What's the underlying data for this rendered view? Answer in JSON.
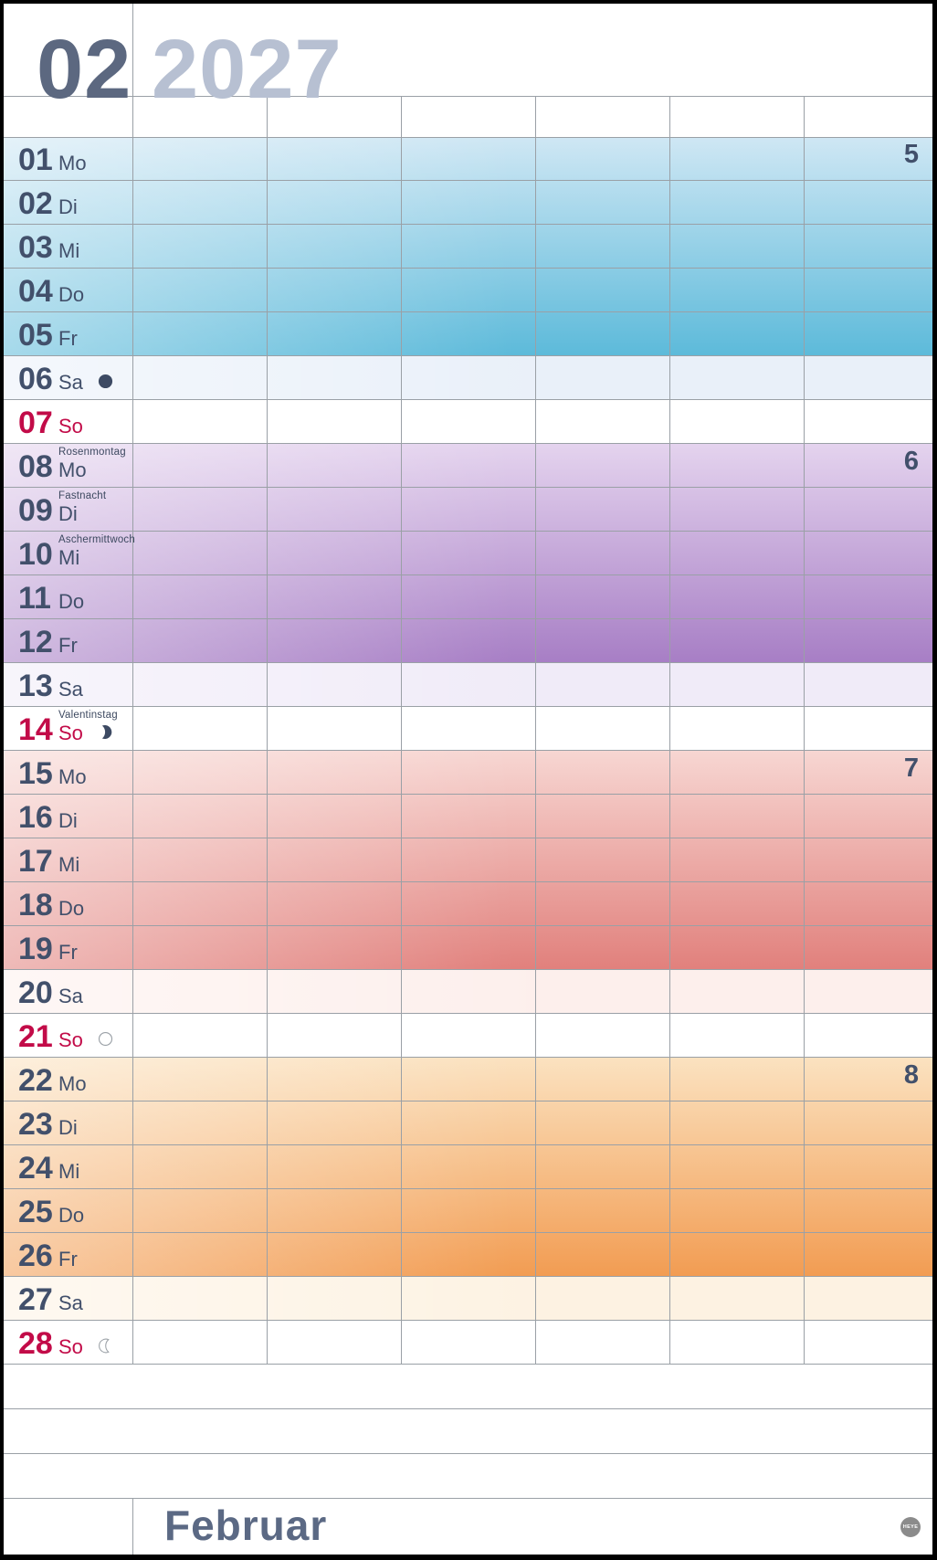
{
  "header": {
    "month_number": "02",
    "year": "2027"
  },
  "footer": {
    "month_name": "Februar",
    "logo_text": "HEYE"
  },
  "days": [
    {
      "num": "01",
      "weekday": "Mo",
      "type": "wk",
      "band": "blue",
      "week_number": "5"
    },
    {
      "num": "02",
      "weekday": "Di",
      "type": "wk",
      "band": "blue"
    },
    {
      "num": "03",
      "weekday": "Mi",
      "type": "wk",
      "band": "blue"
    },
    {
      "num": "04",
      "weekday": "Do",
      "type": "wk",
      "band": "blue"
    },
    {
      "num": "05",
      "weekday": "Fr",
      "type": "wk",
      "band": "blue"
    },
    {
      "num": "06",
      "weekday": "Sa",
      "type": "sa",
      "band": "blue",
      "moon": "new-moon"
    },
    {
      "num": "07",
      "weekday": "So",
      "type": "su"
    },
    {
      "num": "08",
      "weekday": "Mo",
      "type": "wk",
      "band": "purple",
      "week_number": "6",
      "holiday": "Rosenmontag"
    },
    {
      "num": "09",
      "weekday": "Di",
      "type": "wk",
      "band": "purple",
      "holiday": "Fastnacht"
    },
    {
      "num": "10",
      "weekday": "Mi",
      "type": "wk",
      "band": "purple",
      "holiday": "Aschermittwoch"
    },
    {
      "num": "11",
      "weekday": "Do",
      "type": "wk",
      "band": "purple"
    },
    {
      "num": "12",
      "weekday": "Fr",
      "type": "wk",
      "band": "purple"
    },
    {
      "num": "13",
      "weekday": "Sa",
      "type": "sa",
      "band": "purple"
    },
    {
      "num": "14",
      "weekday": "So",
      "type": "su",
      "holiday": "Valentinstag",
      "moon": "first-quarter"
    },
    {
      "num": "15",
      "weekday": "Mo",
      "type": "wk",
      "band": "red",
      "week_number": "7"
    },
    {
      "num": "16",
      "weekday": "Di",
      "type": "wk",
      "band": "red"
    },
    {
      "num": "17",
      "weekday": "Mi",
      "type": "wk",
      "band": "red"
    },
    {
      "num": "18",
      "weekday": "Do",
      "type": "wk",
      "band": "red"
    },
    {
      "num": "19",
      "weekday": "Fr",
      "type": "wk",
      "band": "red"
    },
    {
      "num": "20",
      "weekday": "Sa",
      "type": "sa",
      "band": "red"
    },
    {
      "num": "21",
      "weekday": "So",
      "type": "su",
      "moon": "full-moon"
    },
    {
      "num": "22",
      "weekday": "Mo",
      "type": "wk",
      "band": "orange",
      "week_number": "8"
    },
    {
      "num": "23",
      "weekday": "Di",
      "type": "wk",
      "band": "orange"
    },
    {
      "num": "24",
      "weekday": "Mi",
      "type": "wk",
      "band": "orange"
    },
    {
      "num": "25",
      "weekday": "Do",
      "type": "wk",
      "band": "orange"
    },
    {
      "num": "26",
      "weekday": "Fr",
      "type": "wk",
      "band": "orange"
    },
    {
      "num": "27",
      "weekday": "Sa",
      "type": "sa",
      "band": "orange"
    },
    {
      "num": "28",
      "weekday": "So",
      "type": "su",
      "moon": "last-quarter"
    }
  ],
  "colors": {
    "text_dark": "#42506b",
    "sunday_red": "#c20b48",
    "holiday_text": "#3d4960",
    "month_dark": "#5c6880",
    "year_gray": "#b7c0d2",
    "grid_line": "#9aa0a6",
    "footer_text": "#5b6984",
    "logo_bg": "#8b8b8b",
    "moon_dark": "#3d4a63",
    "moon_outline": "#9aa0a6",
    "bands": {
      "blue": {
        "light": "#cfe7f4",
        "dark": "#5cbada",
        "saturday": "#e9f0f9"
      },
      "purple": {
        "light": "#e4d3ee",
        "dark": "#a77ec5",
        "saturday": "#f0ebf8"
      },
      "red": {
        "light": "#f7d6d2",
        "dark": "#e1807c",
        "saturday": "#fdefec"
      },
      "orange": {
        "light": "#fbe2c0",
        "dark": "#f29c52",
        "saturday": "#fdf2e2"
      }
    }
  }
}
